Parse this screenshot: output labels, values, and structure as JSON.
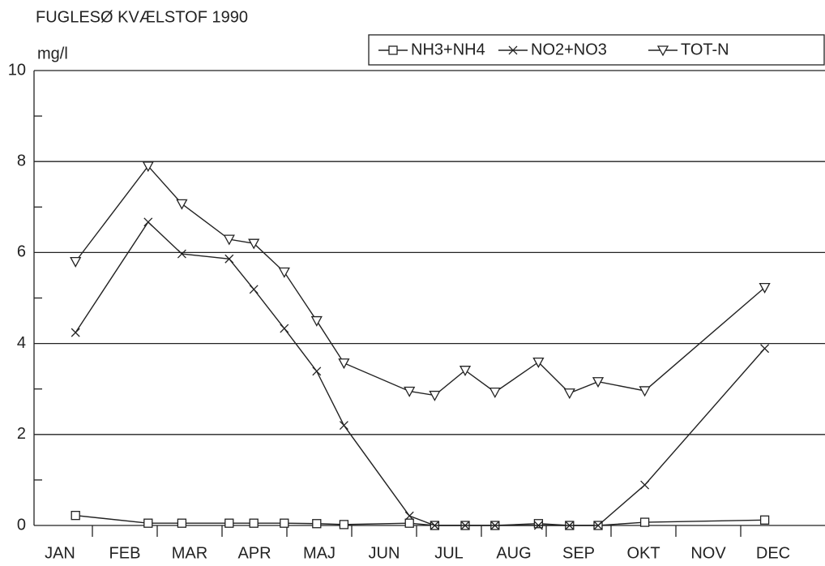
{
  "chart_data": {
    "type": "line",
    "title": "FUGLESØ  KVÆLSTOF  1990",
    "y_label": "mg/l",
    "categories": [
      "JAN",
      "FEB",
      "MAR",
      "APR",
      "MAJ",
      "JUN",
      "JUL",
      "AUG",
      "SEP",
      "OKT",
      "NOV",
      "DEC"
    ],
    "x": [
      0.74,
      1.86,
      2.38,
      3.11,
      3.49,
      3.96,
      4.46,
      4.88,
      5.89,
      6.28,
      6.75,
      7.21,
      7.88,
      8.36,
      8.8,
      9.52,
      11.37
    ],
    "xlim": [
      0.1,
      12.3
    ],
    "xticks": [
      1,
      2,
      3,
      4,
      5,
      6,
      7,
      8,
      9,
      10,
      11
    ],
    "ylim": [
      0,
      10
    ],
    "yticks": [
      0,
      2,
      4,
      6,
      8,
      10
    ],
    "y_minor_ticks": [
      1,
      3,
      5,
      7,
      9
    ],
    "grid": true,
    "legend": "top-right",
    "series": [
      {
        "name": "NH3+NH4",
        "color": "#222222",
        "marker": "square",
        "values": [
          0.22,
          0.05,
          0.05,
          0.05,
          0.05,
          0.05,
          0.04,
          0.02,
          0.05,
          0,
          0,
          0,
          0.04,
          0,
          0,
          0.07,
          0.12
        ]
      },
      {
        "name": "NO2+NO3",
        "color": "#222222",
        "marker": "x",
        "values": [
          4.24,
          6.67,
          5.97,
          5.86,
          5.19,
          4.33,
          3.39,
          2.2,
          0.21,
          0,
          0,
          0,
          0,
          0,
          0,
          0.89,
          3.89
        ]
      },
      {
        "name": "TOT-N",
        "color": "#222222",
        "marker": "triangle-down",
        "values": [
          5.8,
          7.9,
          7.07,
          6.29,
          6.2,
          5.57,
          4.5,
          3.57,
          2.95,
          2.86,
          3.41,
          2.93,
          3.59,
          2.91,
          3.16,
          2.96,
          5.23
        ]
      }
    ]
  }
}
